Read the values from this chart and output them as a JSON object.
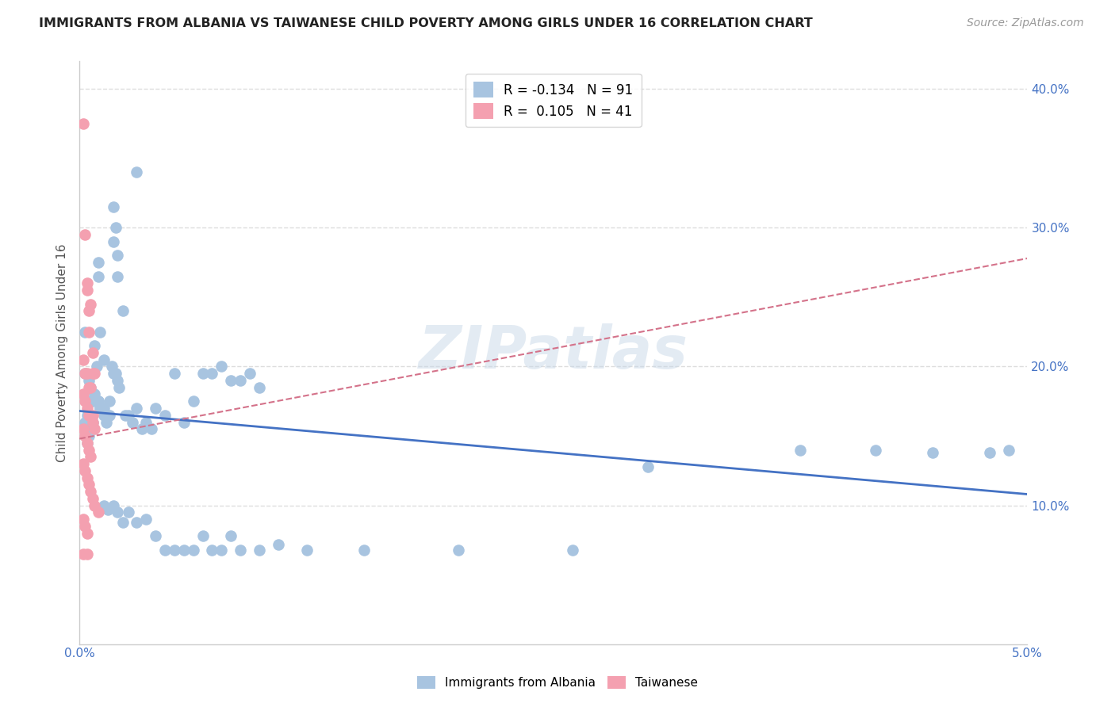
{
  "title": "IMMIGRANTS FROM ALBANIA VS TAIWANESE CHILD POVERTY AMONG GIRLS UNDER 16 CORRELATION CHART",
  "source": "Source: ZipAtlas.com",
  "ylabel": "Child Poverty Among Girls Under 16",
  "xlim": [
    0.0,
    0.05
  ],
  "ylim": [
    0.0,
    0.42
  ],
  "xticks": [
    0.0,
    0.01,
    0.02,
    0.03,
    0.04,
    0.05
  ],
  "xticklabels": [
    "0.0%",
    "",
    "",
    "",
    "",
    "5.0%"
  ],
  "yticks_right": [
    0.1,
    0.2,
    0.3,
    0.4
  ],
  "yticklabels_right": [
    "10.0%",
    "20.0%",
    "30.0%",
    "40.0%"
  ],
  "legend1_label": "Immigrants from Albania",
  "legend2_label": "Taiwanese",
  "legend_R1": "-0.134",
  "legend_N1": "91",
  "legend_R2": "0.105",
  "legend_N2": "41",
  "color_blue": "#a8c4e0",
  "color_pink": "#f4a0b0",
  "line_blue": "#4472c4",
  "line_pink": "#d4728a",
  "watermark": "ZIPatlas",
  "blue_points": [
    [
      0.0003,
      0.195
    ],
    [
      0.0005,
      0.19
    ],
    [
      0.0006,
      0.185
    ],
    [
      0.0007,
      0.175
    ],
    [
      0.0003,
      0.225
    ],
    [
      0.0008,
      0.215
    ],
    [
      0.0009,
      0.2
    ],
    [
      0.001,
      0.275
    ],
    [
      0.001,
      0.265
    ],
    [
      0.0011,
      0.225
    ],
    [
      0.0013,
      0.205
    ],
    [
      0.0004,
      0.165
    ],
    [
      0.0006,
      0.155
    ],
    [
      0.0007,
      0.16
    ],
    [
      0.0009,
      0.175
    ],
    [
      0.001,
      0.175
    ],
    [
      0.0011,
      0.17
    ],
    [
      0.0013,
      0.165
    ],
    [
      0.0014,
      0.16
    ],
    [
      0.0016,
      0.165
    ],
    [
      0.0003,
      0.16
    ],
    [
      0.0004,
      0.145
    ],
    [
      0.0005,
      0.15
    ],
    [
      0.0006,
      0.175
    ],
    [
      0.0008,
      0.18
    ],
    [
      0.0009,
      0.175
    ],
    [
      0.001,
      0.175
    ],
    [
      0.0011,
      0.17
    ],
    [
      0.0013,
      0.17
    ],
    [
      0.0016,
      0.175
    ],
    [
      0.0017,
      0.2
    ],
    [
      0.0018,
      0.195
    ],
    [
      0.0019,
      0.195
    ],
    [
      0.002,
      0.19
    ],
    [
      0.0021,
      0.185
    ],
    [
      0.0023,
      0.24
    ],
    [
      0.0024,
      0.165
    ],
    [
      0.0026,
      0.165
    ],
    [
      0.0028,
      0.16
    ],
    [
      0.003,
      0.17
    ],
    [
      0.0033,
      0.155
    ],
    [
      0.0035,
      0.16
    ],
    [
      0.0038,
      0.155
    ],
    [
      0.004,
      0.17
    ],
    [
      0.0045,
      0.165
    ],
    [
      0.005,
      0.195
    ],
    [
      0.0055,
      0.16
    ],
    [
      0.006,
      0.175
    ],
    [
      0.0065,
      0.195
    ],
    [
      0.007,
      0.195
    ],
    [
      0.0075,
      0.2
    ],
    [
      0.008,
      0.19
    ],
    [
      0.0085,
      0.19
    ],
    [
      0.009,
      0.195
    ],
    [
      0.0095,
      0.185
    ],
    [
      0.0018,
      0.315
    ],
    [
      0.0019,
      0.3
    ],
    [
      0.0018,
      0.29
    ],
    [
      0.002,
      0.265
    ],
    [
      0.002,
      0.28
    ],
    [
      0.003,
      0.34
    ],
    [
      0.0013,
      0.1
    ],
    [
      0.0015,
      0.097
    ],
    [
      0.0018,
      0.1
    ],
    [
      0.002,
      0.095
    ],
    [
      0.0023,
      0.088
    ],
    [
      0.0026,
      0.095
    ],
    [
      0.003,
      0.088
    ],
    [
      0.0035,
      0.09
    ],
    [
      0.004,
      0.078
    ],
    [
      0.0045,
      0.068
    ],
    [
      0.005,
      0.068
    ],
    [
      0.0055,
      0.068
    ],
    [
      0.006,
      0.068
    ],
    [
      0.0065,
      0.078
    ],
    [
      0.007,
      0.068
    ],
    [
      0.0075,
      0.068
    ],
    [
      0.008,
      0.078
    ],
    [
      0.0085,
      0.068
    ],
    [
      0.0095,
      0.068
    ],
    [
      0.0105,
      0.072
    ],
    [
      0.012,
      0.068
    ],
    [
      0.015,
      0.068
    ],
    [
      0.02,
      0.068
    ],
    [
      0.026,
      0.068
    ],
    [
      0.03,
      0.128
    ],
    [
      0.038,
      0.14
    ],
    [
      0.042,
      0.14
    ],
    [
      0.045,
      0.138
    ],
    [
      0.048,
      0.138
    ],
    [
      0.049,
      0.14
    ]
  ],
  "pink_points": [
    [
      0.0002,
      0.375
    ],
    [
      0.0003,
      0.295
    ],
    [
      0.0004,
      0.26
    ],
    [
      0.0004,
      0.255
    ],
    [
      0.0005,
      0.24
    ],
    [
      0.0006,
      0.245
    ],
    [
      0.0005,
      0.225
    ],
    [
      0.0007,
      0.21
    ],
    [
      0.0002,
      0.205
    ],
    [
      0.0003,
      0.195
    ],
    [
      0.0004,
      0.195
    ],
    [
      0.0005,
      0.185
    ],
    [
      0.0006,
      0.185
    ],
    [
      0.0007,
      0.195
    ],
    [
      0.0008,
      0.195
    ],
    [
      0.0002,
      0.18
    ],
    [
      0.0003,
      0.175
    ],
    [
      0.0004,
      0.17
    ],
    [
      0.0005,
      0.165
    ],
    [
      0.0006,
      0.165
    ],
    [
      0.0007,
      0.16
    ],
    [
      0.0002,
      0.155
    ],
    [
      0.0003,
      0.15
    ],
    [
      0.0004,
      0.145
    ],
    [
      0.0005,
      0.14
    ],
    [
      0.0006,
      0.135
    ],
    [
      0.0007,
      0.165
    ],
    [
      0.0008,
      0.155
    ],
    [
      0.0002,
      0.13
    ],
    [
      0.0003,
      0.125
    ],
    [
      0.0004,
      0.12
    ],
    [
      0.0005,
      0.115
    ],
    [
      0.0006,
      0.11
    ],
    [
      0.0007,
      0.105
    ],
    [
      0.0008,
      0.1
    ],
    [
      0.001,
      0.095
    ],
    [
      0.0002,
      0.09
    ],
    [
      0.0003,
      0.085
    ],
    [
      0.0004,
      0.08
    ],
    [
      0.0002,
      0.065
    ],
    [
      0.0004,
      0.065
    ]
  ],
  "blue_line_x": [
    0.0,
    0.05
  ],
  "blue_line_y": [
    0.168,
    0.108
  ],
  "pink_line_x": [
    0.0,
    0.05
  ],
  "pink_line_y": [
    0.148,
    0.278
  ],
  "background_color": "#ffffff",
  "grid_color": "#dddddd"
}
